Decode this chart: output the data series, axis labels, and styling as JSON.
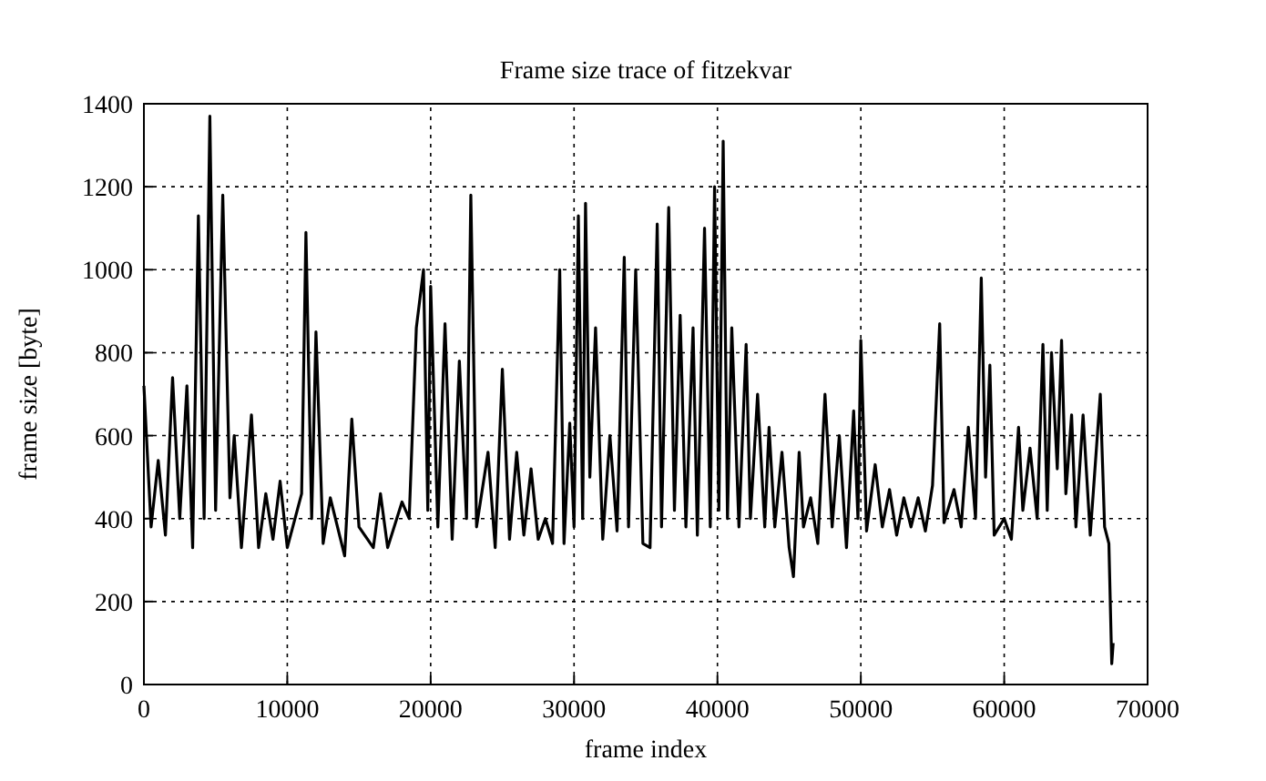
{
  "chart_data": {
    "type": "line",
    "title": "Frame size trace of fitzekvar",
    "xlabel": "frame index",
    "ylabel": "frame size [byte]",
    "x": [
      0,
      500,
      1000,
      1500,
      2000,
      2500,
      3000,
      3400,
      3800,
      4200,
      4600,
      5000,
      5500,
      6000,
      6300,
      6800,
      7500,
      8000,
      8500,
      9000,
      9500,
      10000,
      11000,
      11300,
      11700,
      12000,
      12500,
      13000,
      14000,
      14500,
      15000,
      16000,
      16500,
      17000,
      18000,
      18500,
      19000,
      19500,
      19800,
      20000,
      20500,
      21000,
      21500,
      22000,
      22500,
      22800,
      23200,
      24000,
      24500,
      25000,
      25500,
      26000,
      26500,
      27000,
      27500,
      28000,
      28500,
      29000,
      29300,
      29700,
      30000,
      30300,
      30600,
      30800,
      31100,
      31500,
      32000,
      32500,
      33000,
      33500,
      33800,
      34300,
      34800,
      35300,
      35800,
      36100,
      36600,
      37000,
      37400,
      37800,
      38300,
      38600,
      39100,
      39500,
      39800,
      40100,
      40400,
      40700,
      41000,
      41500,
      42000,
      42300,
      42800,
      43300,
      43600,
      44000,
      44500,
      45000,
      45300,
      45700,
      46000,
      46500,
      47000,
      47500,
      48000,
      48500,
      49000,
      49500,
      49800,
      50000,
      50400,
      51000,
      51500,
      52000,
      52500,
      53000,
      53500,
      54000,
      54500,
      55000,
      55500,
      55800,
      56500,
      57000,
      57500,
      58000,
      58400,
      58700,
      59000,
      59300,
      60000,
      60500,
      61000,
      61300,
      61800,
      62300,
      62700,
      63000,
      63300,
      63700,
      64000,
      64300,
      64700,
      65000,
      65500,
      66000,
      66700,
      67000,
      67300,
      67500,
      67600
    ],
    "series": [
      {
        "color": "#000000",
        "values": [
          720,
          380,
          540,
          360,
          740,
          400,
          720,
          330,
          1130,
          400,
          1370,
          420,
          1180,
          450,
          600,
          330,
          650,
          330,
          460,
          350,
          490,
          330,
          460,
          1090,
          400,
          850,
          340,
          450,
          310,
          640,
          380,
          330,
          460,
          330,
          440,
          400,
          860,
          1000,
          420,
          960,
          380,
          870,
          350,
          780,
          400,
          1180,
          380,
          560,
          330,
          760,
          350,
          560,
          360,
          520,
          350,
          400,
          340,
          1000,
          340,
          630,
          380,
          1130,
          400,
          1160,
          500,
          860,
          350,
          600,
          370,
          1030,
          380,
          1000,
          340,
          330,
          1110,
          380,
          1150,
          420,
          890,
          380,
          860,
          360,
          1100,
          380,
          1200,
          420,
          1310,
          400,
          860,
          380,
          820,
          400,
          700,
          380,
          620,
          380,
          560,
          330,
          260,
          560,
          380,
          450,
          340,
          700,
          380,
          600,
          330,
          660,
          400,
          830,
          370,
          530,
          380,
          470,
          360,
          450,
          380,
          450,
          370,
          480,
          870,
          390,
          470,
          380,
          620,
          400,
          980,
          500,
          770,
          360,
          400,
          350,
          620,
          420,
          570,
          400,
          820,
          420,
          800,
          520,
          830,
          460,
          650,
          380,
          650,
          360,
          700,
          380,
          340,
          50,
          100
        ]
      }
    ],
    "xlim": [
      0,
      70000
    ],
    "ylim": [
      0,
      1400
    ],
    "xticks": [
      0,
      10000,
      20000,
      30000,
      40000,
      50000,
      60000,
      70000
    ],
    "yticks": [
      0,
      200,
      400,
      600,
      800,
      1000,
      1200,
      1400
    ],
    "grid": true,
    "line_style": "solid"
  }
}
